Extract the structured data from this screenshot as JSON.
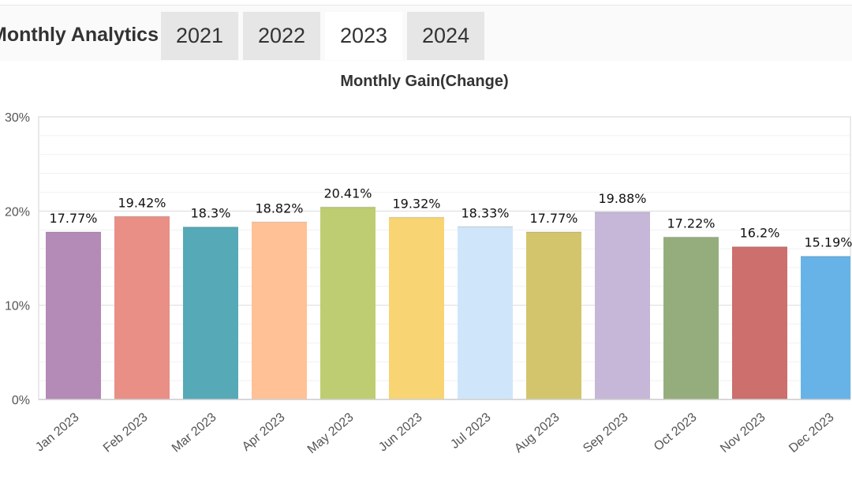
{
  "header": {
    "title": "Monthly Analytics",
    "tabs": [
      {
        "label": "2021",
        "active": false
      },
      {
        "label": "2022",
        "active": false
      },
      {
        "label": "2023",
        "active": true
      },
      {
        "label": "2024",
        "active": false
      }
    ]
  },
  "chart_data": {
    "type": "bar",
    "title": "Monthly Gain(Change)",
    "xlabel": "",
    "ylabel": "",
    "ylim": [
      0,
      30
    ],
    "yticks": [
      "0%",
      "10%",
      "20%",
      "30%"
    ],
    "grid": true,
    "categories": [
      "Jan 2023",
      "Feb 2023",
      "Mar 2023",
      "Apr 2023",
      "May 2023",
      "Jun 2023",
      "Jul 2023",
      "Aug 2023",
      "Sep 2023",
      "Oct 2023",
      "Nov 2023",
      "Dec 2023"
    ],
    "values": [
      17.77,
      19.42,
      18.3,
      18.82,
      20.41,
      19.32,
      18.33,
      17.77,
      19.88,
      17.22,
      16.2,
      15.19
    ],
    "labels": [
      "17.77%",
      "19.42%",
      "18.3%",
      "18.82%",
      "20.41%",
      "19.32%",
      "18.33%",
      "17.77%",
      "19.88%",
      "17.22%",
      "16.2%",
      "15.19%"
    ],
    "colors": [
      "#b48ab6",
      "#e98f86",
      "#56a9b7",
      "#ffc195",
      "#bfcd72",
      "#f8d473",
      "#cfe6fa",
      "#d3c56c",
      "#c6b7d8",
      "#95ad7d",
      "#cc6f6d",
      "#67b3e8"
    ]
  }
}
